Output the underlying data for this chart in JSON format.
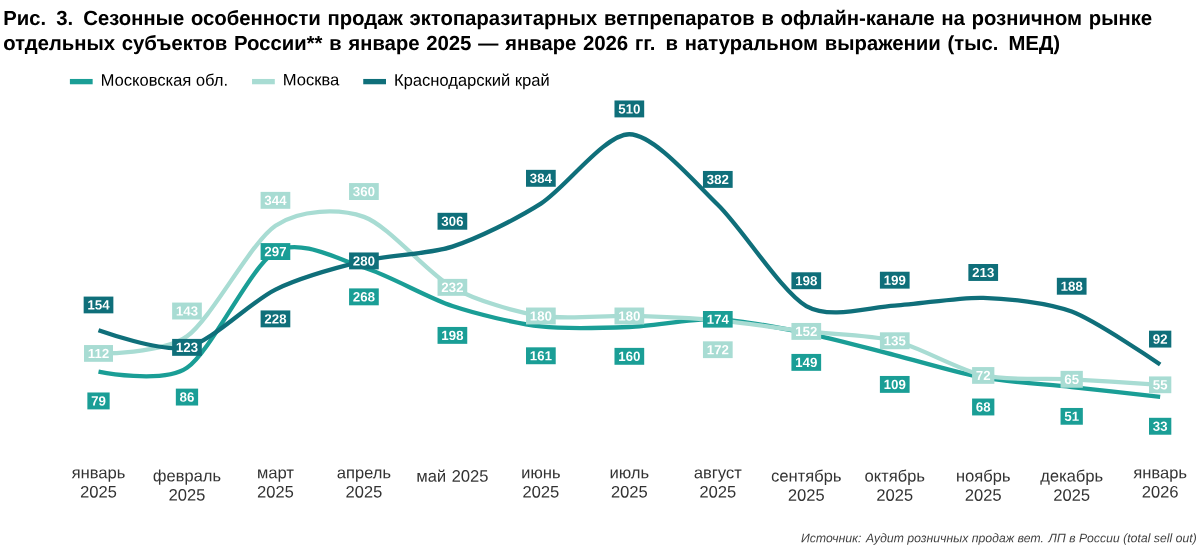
{
  "chart_data": {
    "type": "line",
    "title": "Рис. 3. Сезонные особенности продаж эктопаразитарных ветпрепаратов в офлайн-канале на розничном рынке отдельных субъектов России** в январе 2025 — январе 2026 гг. в натуральном выражении (тыс. МЕД)",
    "categories": [
      "январь 2025",
      "февраль 2025",
      "март 2025",
      "апрель 2025",
      "май 2025",
      "июнь 2025",
      "июль 2025",
      "август 2025",
      "сентябрь 2025",
      "октябрь 2025",
      "ноябрь 2025",
      "декабрь 2025",
      "январь 2026"
    ],
    "series": [
      {
        "name": "Московская обл.",
        "color": "#1a9e96",
        "values": [
          79,
          86,
          297,
          268,
          198,
          161,
          160,
          174,
          149,
          109,
          68,
          51,
          33
        ]
      },
      {
        "name": "Москва",
        "color": "#a8dcd3",
        "values": [
          112,
          143,
          344,
          360,
          232,
          180,
          180,
          172,
          152,
          135,
          72,
          65,
          55
        ]
      },
      {
        "name": "Краснодарский край",
        "color": "#0f6f7a",
        "values": [
          154,
          123,
          228,
          280,
          306,
          384,
          510,
          382,
          198,
          199,
          213,
          188,
          92
        ]
      }
    ],
    "data_labels": true,
    "legend": "top left",
    "line_style": "solid",
    "grid": false,
    "annotations": [
      "Источник: Аудит розничных продаж вет. ЛП в России (total sell out)"
    ]
  }
}
